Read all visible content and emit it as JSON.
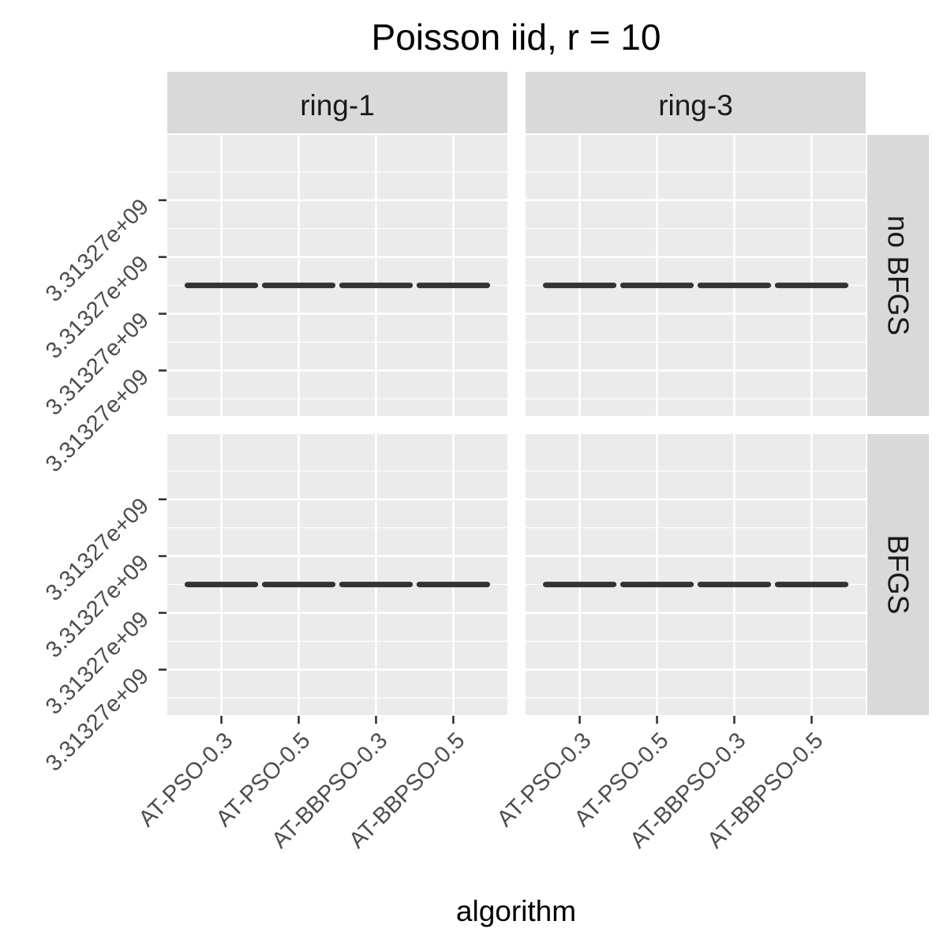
{
  "chart_data": {
    "type": "boxplot",
    "title": "Poisson iid, r = 10",
    "xlabel": "algorithm",
    "ylabel": "",
    "categories": [
      "AT-PSO-0.3",
      "AT-PSO-0.5",
      "AT-BBPSO-0.3",
      "AT-BBPSO-0.5"
    ],
    "y_tick_labels": [
      "3.31327e+09",
      "3.31327e+09",
      "3.31327e+09",
      "3.31327e+09"
    ],
    "facet_columns": [
      "ring-1",
      "ring-3"
    ],
    "facet_rows": [
      "no BFGS",
      "BFGS"
    ],
    "panels": [
      {
        "col": "ring-1",
        "row": "no BFGS",
        "values": [
          3313270000.0,
          3313270000.0,
          3313270000.0,
          3313270000.0
        ]
      },
      {
        "col": "ring-3",
        "row": "no BFGS",
        "values": [
          3313270000.0,
          3313270000.0,
          3313270000.0,
          3313270000.0
        ]
      },
      {
        "col": "ring-1",
        "row": "BFGS",
        "values": [
          3313270000.0,
          3313270000.0,
          3313270000.0,
          3313270000.0
        ]
      },
      {
        "col": "ring-3",
        "row": "BFGS",
        "values": [
          3313270000.0,
          3313270000.0,
          3313270000.0,
          3313270000.0
        ]
      }
    ],
    "grid": true,
    "legend": "none",
    "colors": {
      "panel_bg": "#ebebeb",
      "strip_bg": "#d9d9d9",
      "grid": "#ffffff",
      "mark": "#333333",
      "tick_text": "#4d4d4d",
      "text": "#1a1a1a"
    }
  }
}
